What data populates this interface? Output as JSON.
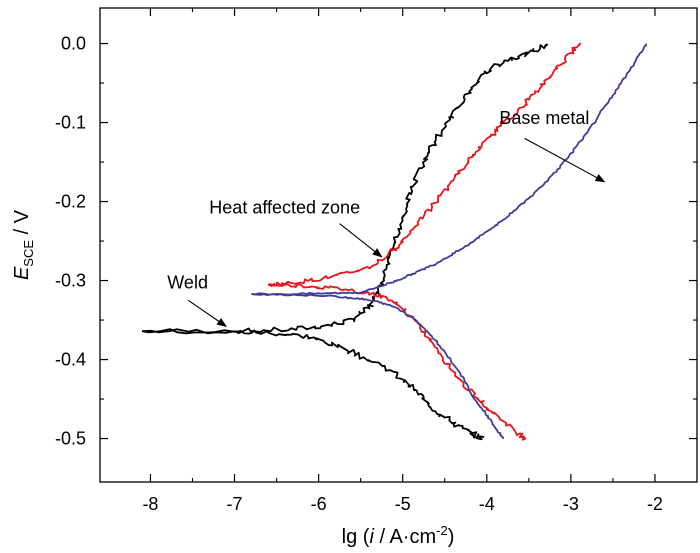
{
  "chart_data": {
    "type": "line",
    "title": "",
    "xlabel": {
      "prefix": "lg (",
      "var": "i",
      "mid": " / A·cm",
      "sup": "-2",
      "suffix": ")"
    },
    "ylabel": {
      "var": "E",
      "sub": "SCE",
      "suffix": " / V"
    },
    "xlim": [
      -8.6,
      -1.5
    ],
    "ylim": [
      -0.555,
      0.045
    ],
    "x_ticks": [
      -8,
      -7,
      -6,
      -5,
      -4,
      -3,
      -2
    ],
    "x_tick_labels": [
      "-8",
      "-7",
      "-6",
      "-5",
      "-4",
      "-3",
      "-2"
    ],
    "y_ticks": [
      0.0,
      -0.1,
      -0.2,
      -0.3,
      -0.4,
      -0.5
    ],
    "y_tick_labels": [
      "0.0",
      "-0.1",
      "-0.2",
      "-0.3",
      "-0.4",
      "-0.5"
    ],
    "series": [
      {
        "name": "Weld",
        "color": "#000000",
        "anodic": [
          [
            -8.1,
            -0.364
          ],
          [
            -7.0,
            -0.364
          ],
          [
            -6.3,
            -0.362
          ],
          [
            -5.9,
            -0.357
          ],
          [
            -5.6,
            -0.35
          ],
          [
            -5.4,
            -0.335
          ],
          [
            -5.3,
            -0.315
          ],
          [
            -5.2,
            -0.29
          ],
          [
            -5.1,
            -0.255
          ],
          [
            -5.0,
            -0.22
          ],
          [
            -4.9,
            -0.185
          ],
          [
            -4.75,
            -0.15
          ],
          [
            -4.6,
            -0.12
          ],
          [
            -4.4,
            -0.09
          ],
          [
            -4.2,
            -0.06
          ],
          [
            -4.0,
            -0.035
          ],
          [
            -3.75,
            -0.02
          ],
          [
            -3.5,
            -0.012
          ],
          [
            -3.25,
            0.0
          ]
        ],
        "cathodic": [
          [
            -8.1,
            -0.364
          ],
          [
            -7.0,
            -0.365
          ],
          [
            -6.6,
            -0.366
          ],
          [
            -6.2,
            -0.37
          ],
          [
            -5.9,
            -0.378
          ],
          [
            -5.6,
            -0.39
          ],
          [
            -5.3,
            -0.405
          ],
          [
            -5.0,
            -0.425
          ],
          [
            -4.8,
            -0.445
          ],
          [
            -4.6,
            -0.465
          ],
          [
            -4.4,
            -0.48
          ],
          [
            -4.2,
            -0.493
          ],
          [
            -4.05,
            -0.5
          ]
        ]
      },
      {
        "name": "Heat affected zone",
        "color": "#e8151b",
        "anodic": [
          [
            -6.6,
            -0.305
          ],
          [
            -6.3,
            -0.303
          ],
          [
            -6.0,
            -0.298
          ],
          [
            -5.7,
            -0.292
          ],
          [
            -5.4,
            -0.283
          ],
          [
            -5.2,
            -0.27
          ],
          [
            -5.0,
            -0.25
          ],
          [
            -4.8,
            -0.225
          ],
          [
            -4.6,
            -0.2
          ],
          [
            -4.4,
            -0.172
          ],
          [
            -4.2,
            -0.147
          ],
          [
            -4.0,
            -0.122
          ],
          [
            -3.8,
            -0.1
          ],
          [
            -3.6,
            -0.082
          ],
          [
            -3.4,
            -0.06
          ],
          [
            -3.2,
            -0.035
          ],
          [
            -3.0,
            -0.012
          ],
          [
            -2.9,
            0.0
          ]
        ],
        "cathodic": [
          [
            -6.6,
            -0.305
          ],
          [
            -6.3,
            -0.306
          ],
          [
            -6.0,
            -0.308
          ],
          [
            -5.7,
            -0.311
          ],
          [
            -5.4,
            -0.316
          ],
          [
            -5.2,
            -0.322
          ],
          [
            -5.0,
            -0.335
          ],
          [
            -4.8,
            -0.358
          ],
          [
            -4.6,
            -0.385
          ],
          [
            -4.4,
            -0.415
          ],
          [
            -4.2,
            -0.44
          ],
          [
            -4.0,
            -0.46
          ],
          [
            -3.8,
            -0.478
          ],
          [
            -3.6,
            -0.495
          ],
          [
            -3.55,
            -0.5
          ]
        ]
      },
      {
        "name": "Base metal",
        "color": "#3d3d99",
        "anodic": [
          [
            -6.8,
            -0.317
          ],
          [
            -6.3,
            -0.317
          ],
          [
            -5.8,
            -0.316
          ],
          [
            -5.5,
            -0.315
          ],
          [
            -5.2,
            -0.305
          ],
          [
            -5.0,
            -0.297
          ],
          [
            -4.8,
            -0.288
          ],
          [
            -4.6,
            -0.278
          ],
          [
            -4.4,
            -0.266
          ],
          [
            -4.2,
            -0.253
          ],
          [
            -4.0,
            -0.238
          ],
          [
            -3.8,
            -0.223
          ],
          [
            -3.6,
            -0.205
          ],
          [
            -3.4,
            -0.186
          ],
          [
            -3.2,
            -0.164
          ],
          [
            -3.0,
            -0.14
          ],
          [
            -2.8,
            -0.112
          ],
          [
            -2.6,
            -0.08
          ],
          [
            -2.4,
            -0.05
          ],
          [
            -2.25,
            -0.025
          ],
          [
            -2.1,
            0.0
          ]
        ],
        "cathodic": [
          [
            -6.8,
            -0.317
          ],
          [
            -6.3,
            -0.318
          ],
          [
            -5.8,
            -0.32
          ],
          [
            -5.5,
            -0.323
          ],
          [
            -5.3,
            -0.327
          ],
          [
            -5.1,
            -0.333
          ],
          [
            -4.9,
            -0.345
          ],
          [
            -4.7,
            -0.365
          ],
          [
            -4.5,
            -0.39
          ],
          [
            -4.3,
            -0.42
          ],
          [
            -4.15,
            -0.45
          ],
          [
            -4.0,
            -0.47
          ],
          [
            -3.9,
            -0.487
          ],
          [
            -3.8,
            -0.5
          ]
        ]
      }
    ],
    "annotations": [
      {
        "text": "Base metal",
        "text_at": [
          -3.85,
          -0.102
        ],
        "arrow_from": [
          -3.55,
          -0.12
        ],
        "arrow_to": [
          -2.6,
          -0.175
        ]
      },
      {
        "text": "Heat affected zone",
        "text_at": [
          -7.3,
          -0.215
        ],
        "arrow_from": [
          -5.75,
          -0.228
        ],
        "arrow_to": [
          -5.25,
          -0.27
        ]
      },
      {
        "text": "Weld",
        "text_at": [
          -7.8,
          -0.31
        ],
        "arrow_from": [
          -7.55,
          -0.325
        ],
        "arrow_to": [
          -7.1,
          -0.358
        ]
      }
    ]
  }
}
